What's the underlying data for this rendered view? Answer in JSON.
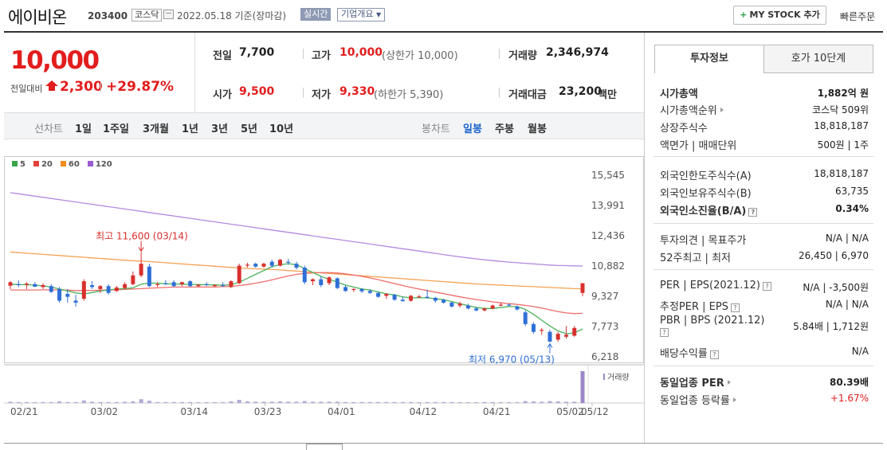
{
  "header": {
    "name": "에이비온",
    "code": "203400",
    "market": "코스닥",
    "date_text": "2022.05.18  기준(장마감)",
    "realtime": "실시간",
    "company": "기업개요",
    "mystock": "MY STOCK 추가",
    "quick_order": "빠른주문"
  },
  "price": {
    "current": "10,000",
    "prev_label": "전일대비",
    "change": "2,300",
    "rate": "+29.87%"
  },
  "quote": {
    "prev_label": "전일",
    "prev_value": "7,700",
    "high_label": "고가",
    "high_value": "10,000",
    "high_note": "(상한가 10,000)",
    "volume_label": "거래량",
    "volume_value": "2,346,974",
    "open_label": "시가",
    "open_value": "9,500",
    "low_label": "저가",
    "low_value": "9,330",
    "low_note": "(하한가 5,390)",
    "amount_label": "거래대금",
    "amount_value": "23,200",
    "amount_unit": "백만"
  },
  "period": {
    "line_label": "선차트",
    "line_options": [
      "1일",
      "1주일",
      "3개월",
      "1년",
      "3년",
      "5년",
      "10년"
    ],
    "candle_label": "봉차트",
    "candle_options": [
      "일봉",
      "주봉",
      "월봉"
    ],
    "active": "일봉"
  },
  "tabs": {
    "invest": "투자정보",
    "orderbook": "호가 10단계"
  },
  "invest": {
    "group1": [
      {
        "label": "시가총액",
        "value": "1,882억 원",
        "bold": true
      },
      {
        "label": "시가총액순위",
        "value": "코스닥 509위",
        "arrow": true
      },
      {
        "label": "상장주식수",
        "value": "18,818,187"
      },
      {
        "label": "액면가 | 매매단위",
        "value": "500원 | 1주"
      }
    ],
    "group2": [
      {
        "label": "외국인한도주식수(A)",
        "value": "18,818,187"
      },
      {
        "label": "외국인보유주식수(B)",
        "value": "63,735"
      },
      {
        "label": "외국인소진율(B/A)",
        "value": "0.34%",
        "bold": true,
        "hint": true
      }
    ],
    "group3": [
      {
        "label": "투자의견 | 목표주가",
        "value": "N/A | N/A"
      },
      {
        "label": "52주최고 | 최저",
        "value": "26,450 | 6,970"
      }
    ],
    "group4": [
      {
        "label": "PER | EPS(2021.12)",
        "value": "N/A | -3,500원",
        "hint": true
      },
      {
        "label": "추정PER | EPS",
        "value": "N/A | N/A",
        "hint": true
      },
      {
        "label": "PBR | BPS (2021.12)",
        "value": "5.84배 | 1,712원",
        "hint": true
      },
      {
        "label": "배당수익률",
        "value": "N/A",
        "hint": true
      }
    ],
    "group5": [
      {
        "label": "동일업종 PER",
        "value": "80.39배",
        "bold": true,
        "arrow": true
      },
      {
        "label": "동일업종 등락률",
        "value": "+1.67%",
        "red": true,
        "arrow": true
      }
    ]
  },
  "chart_data": {
    "type": "candlestick",
    "ma_legend": [
      {
        "name": "5",
        "color": "#3aa44a"
      },
      {
        "name": "20",
        "color": "#e2403c"
      },
      {
        "name": "60",
        "color": "#f08c1e"
      },
      {
        "name": "120",
        "color": "#9b5bd1"
      }
    ],
    "y_ticks": [
      15545,
      13991,
      12436,
      10882,
      9327,
      7773,
      6218
    ],
    "ylim": [
      6218,
      15545
    ],
    "x_ticks": [
      "02/21",
      "03/02",
      "03/14",
      "03/23",
      "04/01",
      "04/12",
      "04/21",
      "05/02",
      "05/12"
    ],
    "annotations": {
      "high": "최고 11,600 (03/14)",
      "low": "최저 6,970 (05/13)"
    },
    "volume_label": "거래량",
    "candles": [
      {
        "o": 9870,
        "h": 10100,
        "l": 9700,
        "c": 10050
      },
      {
        "o": 9950,
        "h": 10150,
        "l": 9800,
        "c": 9900
      },
      {
        "o": 9920,
        "h": 10050,
        "l": 9700,
        "c": 9980
      },
      {
        "o": 9950,
        "h": 10050,
        "l": 9800,
        "c": 9820
      },
      {
        "o": 9800,
        "h": 10000,
        "l": 9700,
        "c": 9900
      },
      {
        "o": 9850,
        "h": 9950,
        "l": 9500,
        "c": 9550
      },
      {
        "o": 9700,
        "h": 9800,
        "l": 9000,
        "c": 9100
      },
      {
        "o": 9450,
        "h": 9700,
        "l": 9000,
        "c": 9300
      },
      {
        "o": 9100,
        "h": 9400,
        "l": 8800,
        "c": 9000
      },
      {
        "o": 9200,
        "h": 10200,
        "l": 9100,
        "c": 10100
      },
      {
        "o": 9900,
        "h": 10100,
        "l": 9700,
        "c": 9800
      },
      {
        "o": 9700,
        "h": 9900,
        "l": 9500,
        "c": 9850
      },
      {
        "o": 9850,
        "h": 9950,
        "l": 9400,
        "c": 9500
      },
      {
        "o": 9600,
        "h": 9850,
        "l": 9550,
        "c": 9780
      },
      {
        "o": 9750,
        "h": 10050,
        "l": 9700,
        "c": 9950
      },
      {
        "o": 9950,
        "h": 10600,
        "l": 9900,
        "c": 10400
      },
      {
        "o": 10400,
        "h": 11600,
        "l": 10300,
        "c": 11000
      },
      {
        "o": 10850,
        "h": 11000,
        "l": 9800,
        "c": 9850
      },
      {
        "o": 9900,
        "h": 10050,
        "l": 9800,
        "c": 9950
      },
      {
        "o": 10000,
        "h": 10150,
        "l": 9900,
        "c": 9980
      },
      {
        "o": 10050,
        "h": 10150,
        "l": 9800,
        "c": 9850
      },
      {
        "o": 9950,
        "h": 10080,
        "l": 9850,
        "c": 10050
      },
      {
        "o": 10100,
        "h": 10150,
        "l": 9800,
        "c": 9850
      },
      {
        "o": 9850,
        "h": 9950,
        "l": 9800,
        "c": 9920
      },
      {
        "o": 9950,
        "h": 10050,
        "l": 9850,
        "c": 9900
      },
      {
        "o": 9850,
        "h": 9950,
        "l": 9800,
        "c": 9900
      },
      {
        "o": 9900,
        "h": 10050,
        "l": 9800,
        "c": 9880
      },
      {
        "o": 9800,
        "h": 10150,
        "l": 9750,
        "c": 10100
      },
      {
        "o": 10000,
        "h": 11000,
        "l": 9950,
        "c": 10900
      },
      {
        "o": 10900,
        "h": 11050,
        "l": 10800,
        "c": 10950
      },
      {
        "o": 11000,
        "h": 11050,
        "l": 10800,
        "c": 10850
      },
      {
        "o": 10850,
        "h": 11050,
        "l": 10800,
        "c": 11000
      },
      {
        "o": 11100,
        "h": 11200,
        "l": 10800,
        "c": 10900
      },
      {
        "o": 10900,
        "h": 11250,
        "l": 10850,
        "c": 11200
      },
      {
        "o": 11100,
        "h": 11250,
        "l": 10950,
        "c": 11050
      },
      {
        "o": 11000,
        "h": 11100,
        "l": 10700,
        "c": 10800
      },
      {
        "o": 10800,
        "h": 10900,
        "l": 9950,
        "c": 10050
      },
      {
        "o": 10100,
        "h": 10250,
        "l": 9900,
        "c": 10200
      },
      {
        "o": 10200,
        "h": 10350,
        "l": 9800,
        "c": 9900
      },
      {
        "o": 10000,
        "h": 10350,
        "l": 9900,
        "c": 10300
      },
      {
        "o": 10250,
        "h": 10300,
        "l": 9700,
        "c": 9750
      },
      {
        "o": 9800,
        "h": 9900,
        "l": 9550,
        "c": 9600
      },
      {
        "o": 9650,
        "h": 9750,
        "l": 9550,
        "c": 9700
      },
      {
        "o": 9700,
        "h": 9750,
        "l": 9500,
        "c": 9580
      },
      {
        "o": 9600,
        "h": 9700,
        "l": 9450,
        "c": 9500
      },
      {
        "o": 9500,
        "h": 9550,
        "l": 9250,
        "c": 9300
      },
      {
        "o": 9350,
        "h": 9500,
        "l": 9200,
        "c": 9450
      },
      {
        "o": 9400,
        "h": 9450,
        "l": 9100,
        "c": 9150
      },
      {
        "o": 9150,
        "h": 9300,
        "l": 9050,
        "c": 9080
      },
      {
        "o": 9100,
        "h": 9400,
        "l": 9050,
        "c": 9350
      },
      {
        "o": 9300,
        "h": 9400,
        "l": 9250,
        "c": 9320
      },
      {
        "o": 9300,
        "h": 9650,
        "l": 9200,
        "c": 9280
      },
      {
        "o": 9250,
        "h": 9300,
        "l": 9000,
        "c": 9100
      },
      {
        "o": 9150,
        "h": 9200,
        "l": 8950,
        "c": 9000
      },
      {
        "o": 9000,
        "h": 9050,
        "l": 8750,
        "c": 8800
      },
      {
        "o": 8850,
        "h": 9050,
        "l": 8750,
        "c": 8950
      },
      {
        "o": 8850,
        "h": 8950,
        "l": 8650,
        "c": 8700
      },
      {
        "o": 8700,
        "h": 8800,
        "l": 8550,
        "c": 8600
      },
      {
        "o": 8600,
        "h": 8750,
        "l": 8550,
        "c": 8700
      },
      {
        "o": 8700,
        "h": 8900,
        "l": 8650,
        "c": 8850
      },
      {
        "o": 8850,
        "h": 9000,
        "l": 8800,
        "c": 8900
      },
      {
        "o": 8900,
        "h": 8950,
        "l": 8800,
        "c": 8850
      },
      {
        "o": 8800,
        "h": 8850,
        "l": 8600,
        "c": 8650
      },
      {
        "o": 8500,
        "h": 8600,
        "l": 7800,
        "c": 7900
      },
      {
        "o": 7900,
        "h": 8000,
        "l": 7400,
        "c": 7500
      },
      {
        "o": 7550,
        "h": 7700,
        "l": 7350,
        "c": 7600
      },
      {
        "o": 7500,
        "h": 7600,
        "l": 6970,
        "c": 7000
      },
      {
        "o": 7100,
        "h": 7500,
        "l": 6990,
        "c": 7400
      },
      {
        "o": 7250,
        "h": 7800,
        "l": 7150,
        "c": 7350
      },
      {
        "o": 7300,
        "h": 7800,
        "l": 7250,
        "c": 7700
      },
      {
        "o": 9500,
        "h": 10000,
        "l": 9330,
        "c": 10000
      }
    ],
    "ma5": [
      9950,
      9930,
      9920,
      9900,
      9860,
      9800,
      9700,
      9600,
      9500,
      9450,
      9520,
      9600,
      9650,
      9700,
      9720,
      9760,
      9950,
      10000,
      10000,
      9970,
      9960,
      9950,
      9940,
      9930,
      9920,
      9910,
      9900,
      9920,
      10050,
      10250,
      10450,
      10650,
      10850,
      10950,
      11000,
      10950,
      10750,
      10550,
      10350,
      10200,
      10050,
      9900,
      9800,
      9700,
      9650,
      9550,
      9450,
      9400,
      9300,
      9250,
      9250,
      9250,
      9200,
      9150,
      9050,
      8950,
      8850,
      8750,
      8700,
      8700,
      8750,
      8800,
      8800,
      8650,
      8400,
      8100,
      7800,
      7550,
      7400,
      7450,
      7650
    ],
    "ma20": [
      9650,
      9650,
      9650,
      9650,
      9660,
      9660,
      9650,
      9640,
      9620,
      9620,
      9630,
      9640,
      9650,
      9660,
      9680,
      9700,
      9720,
      9740,
      9760,
      9780,
      9800,
      9800,
      9800,
      9800,
      9800,
      9800,
      9820,
      9840,
      9880,
      9930,
      10000,
      10080,
      10170,
      10270,
      10370,
      10450,
      10500,
      10530,
      10540,
      10540,
      10520,
      10480,
      10420,
      10350,
      10270,
      10180,
      10080,
      9980,
      9880,
      9780,
      9700,
      9620,
      9540,
      9460,
      9380,
      9300,
      9230,
      9160,
      9100,
      9040,
      8990,
      8950,
      8910,
      8860,
      8800,
      8720,
      8630,
      8540,
      8470,
      8440,
      8450
    ],
    "ma60": [
      11600,
      11570,
      11540,
      11510,
      11480,
      11450,
      11420,
      11390,
      11360,
      11330,
      11300,
      11270,
      11240,
      11210,
      11180,
      11150,
      11130,
      11110,
      11080,
      11050,
      11020,
      10990,
      10960,
      10930,
      10900,
      10870,
      10840,
      10810,
      10780,
      10760,
      10740,
      10720,
      10700,
      10680,
      10650,
      10620,
      10590,
      10560,
      10530,
      10500,
      10470,
      10440,
      10410,
      10380,
      10350,
      10320,
      10290,
      10260,
      10230,
      10200,
      10170,
      10140,
      10110,
      10080,
      10050,
      10020,
      9990,
      9960,
      9940,
      9920,
      9900,
      9880,
      9860,
      9840,
      9820,
      9800,
      9780,
      9760,
      9740,
      9720,
      9710
    ],
    "ma120": [
      14650,
      14590,
      14530,
      14470,
      14410,
      14350,
      14290,
      14230,
      14170,
      14110,
      14050,
      13990,
      13930,
      13870,
      13810,
      13750,
      13690,
      13630,
      13570,
      13510,
      13450,
      13390,
      13330,
      13270,
      13210,
      13150,
      13090,
      13030,
      12970,
      12910,
      12850,
      12790,
      12730,
      12670,
      12610,
      12550,
      12490,
      12430,
      12370,
      12310,
      12250,
      12190,
      12130,
      12070,
      12010,
      11950,
      11890,
      11830,
      11770,
      11710,
      11650,
      11590,
      11530,
      11470,
      11410,
      11350,
      11300,
      11250,
      11200,
      11160,
      11120,
      11080,
      11050,
      11020,
      10990,
      10960,
      10930,
      10910,
      10900,
      10890,
      10880
    ],
    "volume": [
      0.04,
      0.03,
      0.03,
      0.02,
      0.03,
      0.03,
      0.05,
      0.03,
      0.03,
      0.08,
      0.04,
      0.03,
      0.03,
      0.03,
      0.04,
      0.05,
      0.12,
      0.07,
      0.03,
      0.03,
      0.03,
      0.03,
      0.03,
      0.02,
      0.02,
      0.02,
      0.03,
      0.05,
      0.1,
      0.05,
      0.04,
      0.04,
      0.04,
      0.05,
      0.04,
      0.04,
      0.06,
      0.04,
      0.04,
      0.04,
      0.04,
      0.03,
      0.03,
      0.03,
      0.03,
      0.03,
      0.03,
      0.03,
      0.03,
      0.03,
      0.02,
      0.03,
      0.03,
      0.03,
      0.03,
      0.02,
      0.02,
      0.02,
      0.03,
      0.03,
      0.02,
      0.02,
      0.02,
      0.06,
      0.05,
      0.04,
      0.06,
      0.05,
      0.04,
      0.04,
      1.0
    ]
  }
}
